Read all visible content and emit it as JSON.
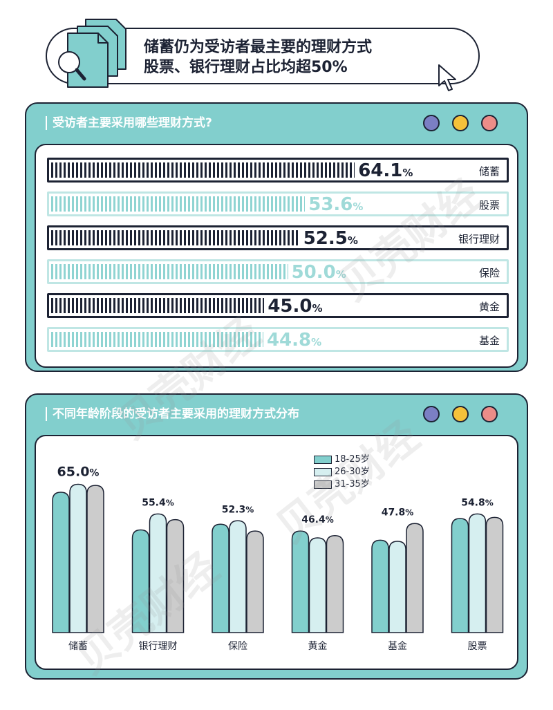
{
  "header": {
    "title_line1": "储蓄仍为受访者最主要的理财方式",
    "title_line2": "股票、银行理财占比均超50%",
    "icon": "document-search-icon",
    "cursor_icon": "cursor-arrow-icon"
  },
  "panel1": {
    "title": "受访者主要采用哪些理财方式?",
    "window_dots": [
      "#7b7fc4",
      "#f5c13a",
      "#ec8d88"
    ]
  },
  "panel2": {
    "title": "不同年龄阶段的受访者主要采用的理财方式分布",
    "window_dots": [
      "#7b7fc4",
      "#f5c13a",
      "#ec8d88"
    ]
  },
  "watermark": "贝壳财经",
  "colors": {
    "teal": "#82cfcd",
    "teal_light": "#d6eff0",
    "gray": "#cccccc",
    "dark": "#1c2233"
  },
  "chart_data": [
    {
      "type": "bar",
      "orientation": "horizontal",
      "title": "受访者主要采用哪些理财方式?",
      "categories": [
        "储蓄",
        "股票",
        "银行理财",
        "保险",
        "黄金",
        "基金"
      ],
      "values": [
        64.1,
        53.6,
        52.5,
        50.0,
        45.0,
        44.8
      ],
      "labels": [
        "64.1",
        "53.6",
        "52.5",
        "50.0",
        "45.0",
        "44.8"
      ],
      "unit": "%",
      "styles": [
        "dark",
        "light",
        "dark",
        "light",
        "dark",
        "light"
      ],
      "xlim": [
        0,
        100
      ]
    },
    {
      "type": "bar",
      "title": "不同年龄阶段的受访者主要采用的理财方式分布",
      "categories": [
        "储蓄",
        "银行理财",
        "保险",
        "黄金",
        "基金",
        "股票"
      ],
      "series": [
        {
          "name": "18-25岁",
          "color": "#82cfcd",
          "values": [
            61.5,
            45.0,
            47.5,
            44.5,
            40.5,
            50.0
          ]
        },
        {
          "name": "26-30岁",
          "color": "#d6eff0",
          "values": [
            65.0,
            52.0,
            49.0,
            41.5,
            40.0,
            52.0
          ]
        },
        {
          "name": "31-35岁",
          "color": "#cccccc",
          "values": [
            64.5,
            49.5,
            44.5,
            42.5,
            47.8,
            50.5
          ]
        }
      ],
      "annotations": [
        "65.0%",
        "55.4%",
        "52.3%",
        "46.4%",
        "47.8%",
        "54.8%"
      ],
      "ylim": [
        0,
        70
      ],
      "grid": false,
      "legend": "top-center"
    }
  ]
}
